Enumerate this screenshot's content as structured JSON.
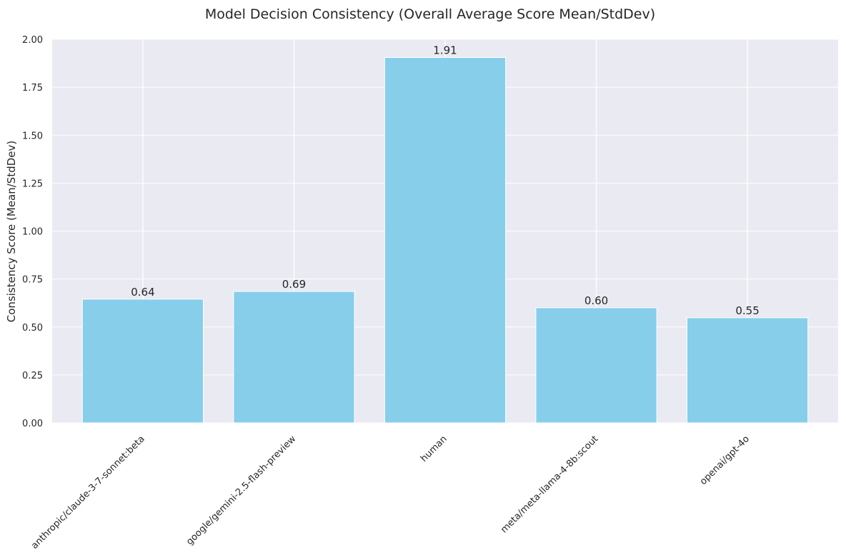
{
  "chart_data": {
    "type": "bar",
    "title": "Model Decision Consistency (Overall Average Score Mean/StdDev)",
    "xlabel": "",
    "ylabel": "Consistency Score (Mean/StdDev)",
    "categories": [
      "anthropic/claude-3-7-sonnet:beta",
      "google/gemini-2.5-flash-preview",
      "human",
      "meta/meta-llama-4-8b:scout",
      "openai/gpt-4o"
    ],
    "values": [
      0.645,
      0.685,
      1.905,
      0.6,
      0.548
    ],
    "value_labels": [
      "0.64",
      "0.69",
      "1.91",
      "0.60",
      "0.55"
    ],
    "ylim": [
      0,
      2.0
    ],
    "yticks": [
      "0.00",
      "0.25",
      "0.50",
      "0.75",
      "1.00",
      "1.25",
      "1.50",
      "1.75",
      "2.00"
    ],
    "grid": true,
    "colors": {
      "bar": "#87CEEB",
      "plot_background": "#EAEAF2",
      "grid": "#FFFFFF",
      "text": "#262626"
    }
  }
}
